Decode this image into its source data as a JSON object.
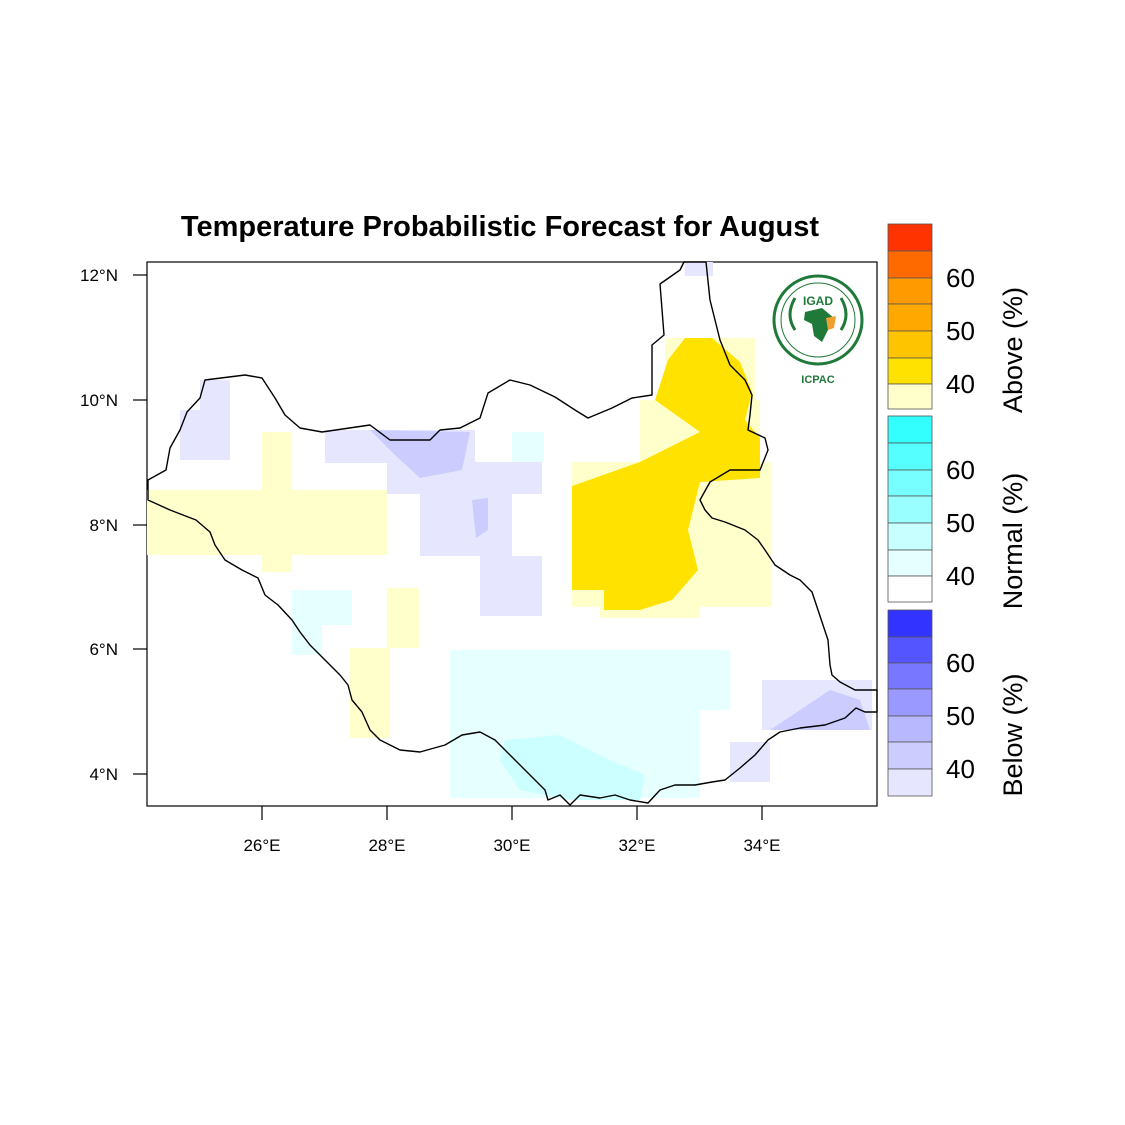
{
  "title": "Temperature Probabilistic Forecast for August",
  "colors": {
    "above": [
      "#ffffcc",
      "#ffe200",
      "#ffc400",
      "#ff9a00",
      "#ff6a00",
      "#ff3300"
    ],
    "normal": [
      "#ffffff",
      "#e6ffff",
      "#c8ffff",
      "#99ffff",
      "#66ffff",
      "#33ffff"
    ],
    "below": [
      "#e6e6ff",
      "#ccccff",
      "#9999ff",
      "#7777ff",
      "#5555ff",
      "#3333ff"
    ],
    "border": "#000000",
    "logo_green": "#1f7a3a",
    "logo_orange": "#f0a030"
  },
  "axes": {
    "x_ticks": [
      "26°E",
      "28°E",
      "30°E",
      "32°E",
      "34°E"
    ],
    "y_ticks": [
      "12°N",
      "10°N",
      "8°N",
      "6°N",
      "4°N"
    ],
    "x_values": [
      26,
      28,
      30,
      32,
      34
    ],
    "y_values": [
      12,
      10,
      8,
      6,
      4
    ],
    "lon_range": [
      24.15,
      35.85
    ],
    "lat_range": [
      3.5,
      12.2
    ]
  },
  "legend": {
    "above": {
      "title": "Above (%)",
      "labels": [
        "40",
        "50",
        "60"
      ]
    },
    "normal": {
      "title": "Normal (%)",
      "labels": [
        "40",
        "50",
        "60"
      ]
    },
    "below": {
      "title": "Below (%)",
      "labels": [
        "40",
        "50",
        "60"
      ]
    }
  },
  "logo": {
    "name": "IGAD",
    "subtitle": "ICPAC",
    "icon": "igad-logo-icon"
  }
}
